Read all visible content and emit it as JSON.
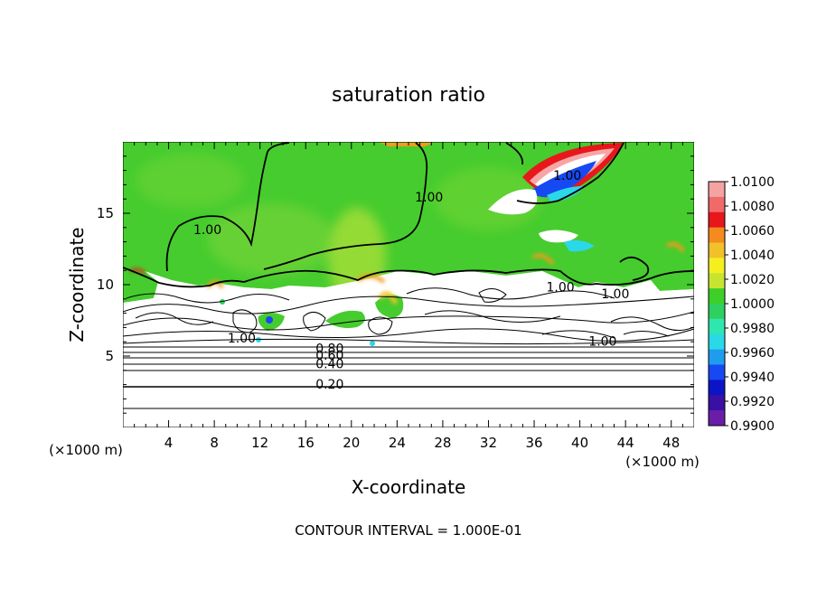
{
  "chart_data": {
    "type": "heatmap",
    "title": "saturation ratio",
    "xlabel": "X-coordinate",
    "ylabel": "Z-coordinate",
    "x_unit": "(×1000 m)",
    "y_unit": "(×1000 m)",
    "xlim": [
      0,
      50
    ],
    "ylim": [
      0,
      20
    ],
    "x_ticks": [
      "4",
      "8",
      "12",
      "16",
      "20",
      "24",
      "28",
      "32",
      "36",
      "40",
      "44",
      "48"
    ],
    "y_ticks": [
      "5",
      "10",
      "15"
    ],
    "colorbar": {
      "labels": [
        "1.0100",
        "1.0080",
        "1.0060",
        "1.0040",
        "1.0020",
        "1.0000",
        "0.9980",
        "0.9960",
        "0.9940",
        "0.9920",
        "0.9900"
      ],
      "colors": [
        "#f4a3a3",
        "#f06a6a",
        "#e8171b",
        "#f58a1e",
        "#f1c12a",
        "#f5ef1f",
        "#c7e530",
        "#3ccf2a",
        "#2ed15f",
        "#2ee6b0",
        "#2ad8e8",
        "#1f9cf0",
        "#1649f2",
        "#0d14c6",
        "#3a0fa3",
        "#6a1ea8"
      ]
    },
    "contour_labels": [
      {
        "text": "1.00",
        "x": 7.4,
        "z": 13.6
      },
      {
        "text": "1.00",
        "x": 26.8,
        "z": 15.9
      },
      {
        "text": "1.00",
        "x": 38.9,
        "z": 17.4
      },
      {
        "text": "1.00",
        "x": 38.3,
        "z": 9.6
      },
      {
        "text": "1.00",
        "x": 43.1,
        "z": 9.1
      },
      {
        "text": "1.00",
        "x": 10.4,
        "z": 6.0
      },
      {
        "text": "1.00",
        "x": 42.0,
        "z": 5.8
      },
      {
        "text": "0.80",
        "x": 18.1,
        "z": 5.3
      },
      {
        "text": "0.60",
        "x": 18.1,
        "z": 4.8
      },
      {
        "text": "0.40",
        "x": 18.1,
        "z": 4.2
      },
      {
        "text": "0.20",
        "x": 18.1,
        "z": 2.8
      }
    ],
    "grid": false
  },
  "footer": {
    "contour_interval": "CONTOUR INTERVAL = 1.000E-01"
  }
}
